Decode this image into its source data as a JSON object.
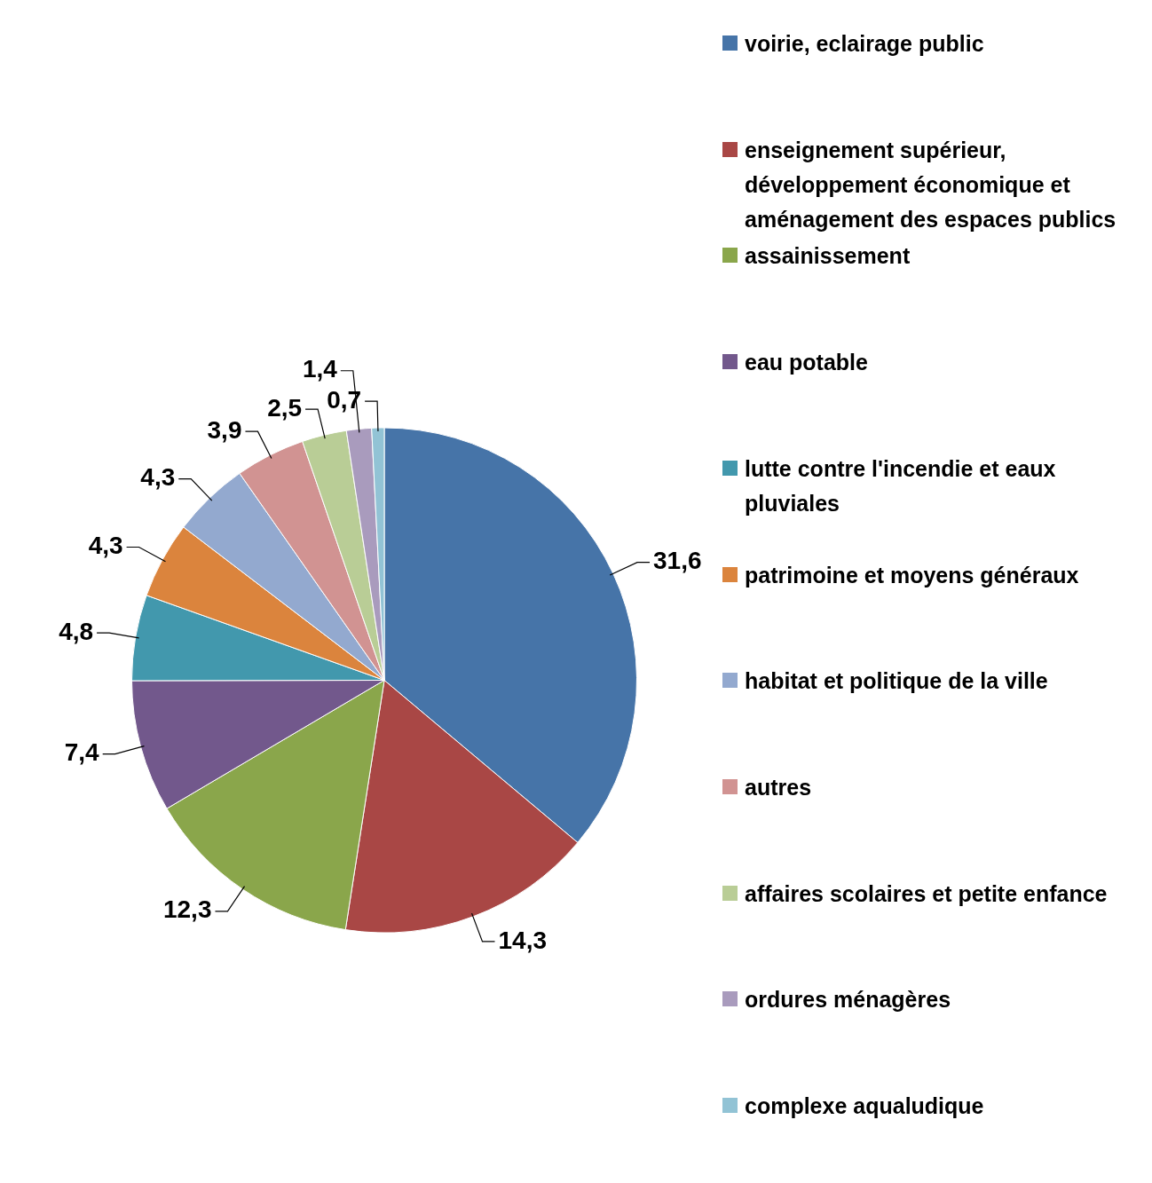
{
  "chart_data": {
    "type": "pie",
    "categories": [
      "voirie, eclairage public",
      "enseignement supérieur, développement économique et aménagement des espaces publics",
      "assainissement",
      "eau potable",
      "lutte contre l'incendie et eaux pluviales",
      "patrimoine et moyens généraux",
      "habitat et politique de la ville",
      "autres",
      "affaires scolaires et petite enfance",
      "ordures ménagères",
      "complexe aqualudique"
    ],
    "values": [
      31.6,
      14.3,
      12.3,
      7.4,
      4.8,
      4.3,
      4.3,
      3.9,
      2.5,
      1.4,
      0.7
    ],
    "colors": [
      "#4674a8",
      "#a94745",
      "#8aa64b",
      "#72588c",
      "#4298ad",
      "#db843d",
      "#93a9cf",
      "#d19392",
      "#b9cd96",
      "#a99bbd",
      "#92c3d5"
    ],
    "value_labels": [
      "31,6",
      "14,3",
      "12,3",
      "7,4",
      "4,8",
      "4,3",
      "4,3",
      "3,9",
      "2,5",
      "1,4",
      "0,7"
    ],
    "legend": "right"
  }
}
